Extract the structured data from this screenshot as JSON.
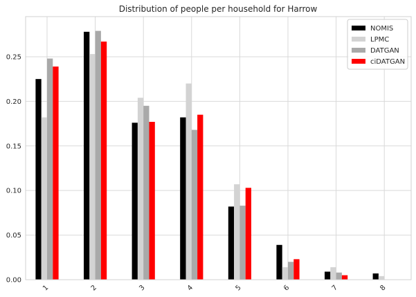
{
  "chart_data": {
    "type": "bar",
    "title": "Distribution of people per household for Harrow",
    "xlabel": "",
    "ylabel": "",
    "categories": [
      "1",
      "2",
      "3",
      "4",
      "5",
      "6",
      "7",
      "8"
    ],
    "ylim": [
      0,
      0.295
    ],
    "yticks": [
      "0.00",
      "0.05",
      "0.10",
      "0.15",
      "0.20",
      "0.25"
    ],
    "grid": true,
    "legend_position": "top-right",
    "series": [
      {
        "name": "NOMIS",
        "color": "#000000",
        "values": [
          0.225,
          0.278,
          0.176,
          0.182,
          0.082,
          0.039,
          0.009,
          0.007
        ]
      },
      {
        "name": "LPMC",
        "color": "#d3d3d3",
        "values": [
          0.182,
          0.253,
          0.204,
          0.22,
          0.107,
          0.014,
          0.014,
          0.004
        ]
      },
      {
        "name": "DATGAN",
        "color": "#a9a9a9",
        "values": [
          0.248,
          0.279,
          0.195,
          0.168,
          0.083,
          0.02,
          0.008,
          0.0
        ]
      },
      {
        "name": "ciDATGAN",
        "color": "#ff0000",
        "values": [
          0.239,
          0.267,
          0.177,
          0.185,
          0.103,
          0.023,
          0.005,
          0.0
        ]
      }
    ]
  }
}
